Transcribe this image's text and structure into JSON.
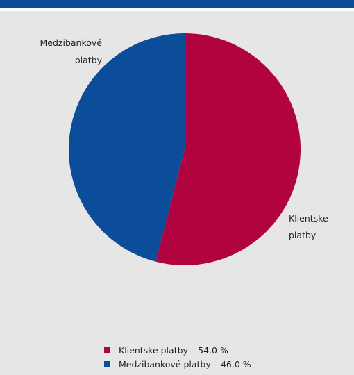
{
  "colors": {
    "header": "#0b4d99",
    "background": "#e6e6e7"
  },
  "chart_data": {
    "type": "pie",
    "slices": [
      {
        "name": "Klientske platby",
        "value": 54.0,
        "color": "#b00340",
        "label_lines": [
          "Klientske",
          "platby"
        ]
      },
      {
        "name": "Medzibankové platby",
        "value": 46.0,
        "color": "#0b4d99",
        "label_lines": [
          "Medzibankové",
          "platby"
        ]
      }
    ],
    "start_angle_deg": 0,
    "direction": "clockwise",
    "legend": {
      "position": "bottom",
      "items": [
        "Klientske platby – 54,0 %",
        "Medzibankové platby – 46,0 %"
      ]
    }
  }
}
